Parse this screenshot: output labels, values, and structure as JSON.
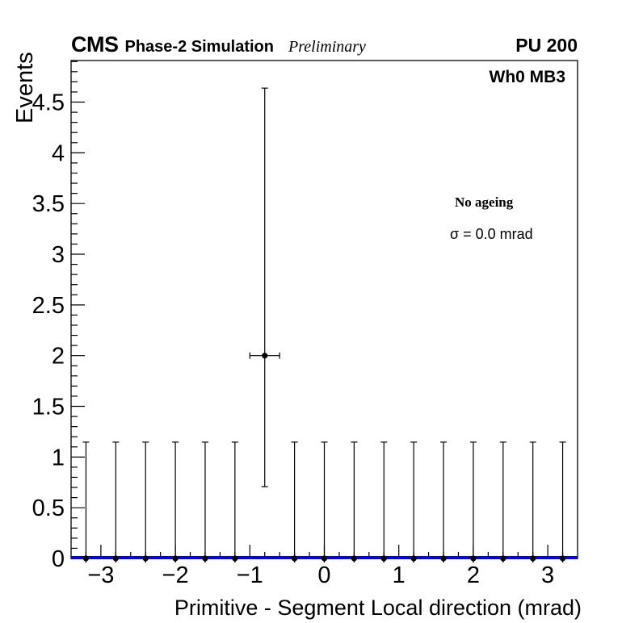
{
  "header": {
    "experiment": "CMS",
    "subtitle": "Phase-2 Simulation",
    "preliminary": "Preliminary",
    "pileup": "PU 200"
  },
  "plot_label": "Wh0 MB3",
  "annotations": {
    "ageing": "No ageing",
    "sigma": "σ = 0.0 mrad"
  },
  "chart_data": {
    "type": "scatter",
    "title": "",
    "xlabel": "Primitive - Segment Local direction (mrad)",
    "ylabel": "Events",
    "xlim": [
      -3.4,
      3.4
    ],
    "ylim": [
      0,
      4.91
    ],
    "grid": false,
    "legend": false,
    "x_tick_values": [
      -3,
      -2,
      -1,
      0,
      1,
      2,
      3
    ],
    "x_tick_labels": [
      "−3",
      "−2",
      "−1",
      "0",
      "1",
      "2",
      "3"
    ],
    "x_minor_step": 0.2,
    "y_tick_values": [
      0,
      0.5,
      1,
      1.5,
      2,
      2.5,
      3,
      3.5,
      4,
      4.5
    ],
    "y_tick_labels": [
      "0",
      "0.5",
      "1",
      "1.5",
      "2",
      "2.5",
      "3",
      "3.5",
      "4",
      "4.5"
    ],
    "y_minor_step": 0.1,
    "zero_line": {
      "y": 0,
      "color": "#0000ff"
    },
    "marker_color": "#000000",
    "bin_width": 0.4,
    "points": [
      {
        "x": -3.2,
        "y": 0,
        "err_up": 1.147,
        "err_low": 0
      },
      {
        "x": -2.8,
        "y": 0,
        "err_up": 1.147,
        "err_low": 0
      },
      {
        "x": -2.4,
        "y": 0,
        "err_up": 1.147,
        "err_low": 0
      },
      {
        "x": -2.0,
        "y": 0,
        "err_up": 1.147,
        "err_low": 0
      },
      {
        "x": -1.6,
        "y": 0,
        "err_up": 1.147,
        "err_low": 0
      },
      {
        "x": -1.2,
        "y": 0,
        "err_up": 1.147,
        "err_low": 0
      },
      {
        "x": -0.8,
        "y": 2,
        "err_up": 2.638,
        "err_low": 1.292,
        "xerr": 0.2
      },
      {
        "x": -0.4,
        "y": 0,
        "err_up": 1.147,
        "err_low": 0
      },
      {
        "x": 0.0,
        "y": 0,
        "err_up": 1.147,
        "err_low": 0
      },
      {
        "x": 0.4,
        "y": 0,
        "err_up": 1.147,
        "err_low": 0
      },
      {
        "x": 0.8,
        "y": 0,
        "err_up": 1.147,
        "err_low": 0
      },
      {
        "x": 1.2,
        "y": 0,
        "err_up": 1.147,
        "err_low": 0
      },
      {
        "x": 1.6,
        "y": 0,
        "err_up": 1.147,
        "err_low": 0
      },
      {
        "x": 2.0,
        "y": 0,
        "err_up": 1.147,
        "err_low": 0
      },
      {
        "x": 2.4,
        "y": 0,
        "err_up": 1.147,
        "err_low": 0
      },
      {
        "x": 2.8,
        "y": 0,
        "err_up": 1.147,
        "err_low": 0
      },
      {
        "x": 3.2,
        "y": 0,
        "err_up": 1.147,
        "err_low": 0
      }
    ]
  }
}
